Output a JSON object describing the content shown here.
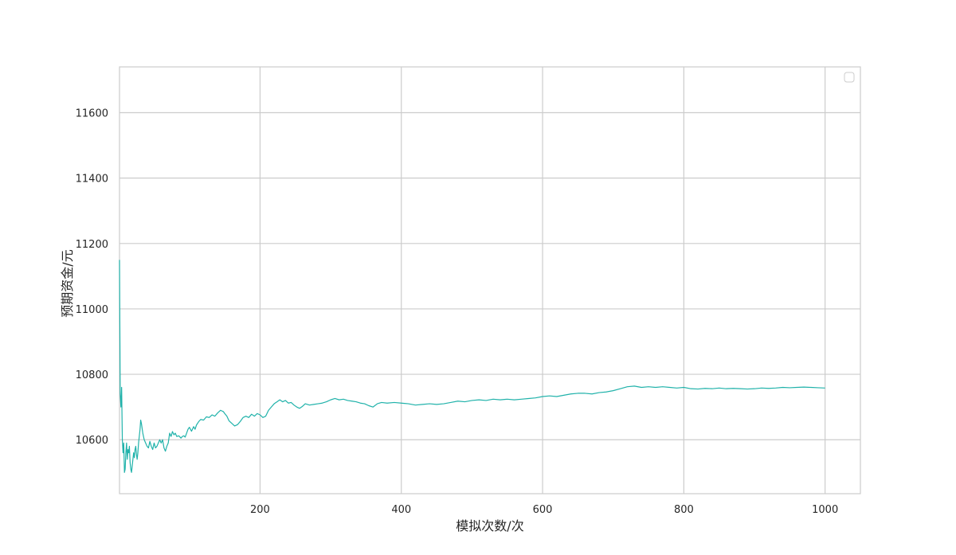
{
  "chart_data": {
    "type": "line",
    "title": "",
    "xlabel": "模拟次数/次",
    "ylabel": "预期资金/元",
    "xlim": [
      1,
      1050
    ],
    "ylim": [
      10435,
      11740
    ],
    "xticks": [
      200,
      400,
      600,
      800,
      1000
    ],
    "yticks": [
      10600,
      10800,
      11000,
      11200,
      11400,
      11600
    ],
    "grid": true,
    "legend": {
      "placement": "top-right",
      "entries": []
    },
    "line_color": "#20b2aa",
    "series": [
      {
        "points": [
          [
            1,
            11150
          ],
          [
            2,
            10740
          ],
          [
            3,
            10700
          ],
          [
            4,
            10760
          ],
          [
            5,
            10600
          ],
          [
            6,
            10560
          ],
          [
            7,
            10590
          ],
          [
            8,
            10500
          ],
          [
            9,
            10510
          ],
          [
            10,
            10560
          ],
          [
            11,
            10590
          ],
          [
            12,
            10540
          ],
          [
            13,
            10570
          ],
          [
            14,
            10560
          ],
          [
            15,
            10580
          ],
          [
            16,
            10530
          ],
          [
            17,
            10510
          ],
          [
            18,
            10500
          ],
          [
            19,
            10520
          ],
          [
            20,
            10540
          ],
          [
            21,
            10560
          ],
          [
            22,
            10545
          ],
          [
            23,
            10570
          ],
          [
            24,
            10580
          ],
          [
            25,
            10555
          ],
          [
            26,
            10540
          ],
          [
            27,
            10560
          ],
          [
            28,
            10590
          ],
          [
            29,
            10610
          ],
          [
            30,
            10630
          ],
          [
            31,
            10660
          ],
          [
            32,
            10650
          ],
          [
            33,
            10635
          ],
          [
            34,
            10620
          ],
          [
            35,
            10610
          ],
          [
            36,
            10600
          ],
          [
            38,
            10590
          ],
          [
            40,
            10580
          ],
          [
            42,
            10575
          ],
          [
            44,
            10595
          ],
          [
            46,
            10580
          ],
          [
            48,
            10570
          ],
          [
            50,
            10590
          ],
          [
            52,
            10575
          ],
          [
            54,
            10580
          ],
          [
            56,
            10590
          ],
          [
            58,
            10600
          ],
          [
            60,
            10590
          ],
          [
            62,
            10600
          ],
          [
            64,
            10575
          ],
          [
            66,
            10565
          ],
          [
            68,
            10580
          ],
          [
            70,
            10590
          ],
          [
            72,
            10620
          ],
          [
            74,
            10610
          ],
          [
            76,
            10625
          ],
          [
            78,
            10615
          ],
          [
            80,
            10620
          ],
          [
            82,
            10610
          ],
          [
            85,
            10612
          ],
          [
            88,
            10605
          ],
          [
            90,
            10610
          ],
          [
            92,
            10612
          ],
          [
            94,
            10608
          ],
          [
            96,
            10620
          ],
          [
            98,
            10632
          ],
          [
            100,
            10638
          ],
          [
            103,
            10626
          ],
          [
            106,
            10640
          ],
          [
            108,
            10632
          ],
          [
            110,
            10645
          ],
          [
            113,
            10655
          ],
          [
            116,
            10662
          ],
          [
            120,
            10660
          ],
          [
            124,
            10670
          ],
          [
            128,
            10668
          ],
          [
            132,
            10676
          ],
          [
            136,
            10672
          ],
          [
            140,
            10682
          ],
          [
            144,
            10690
          ],
          [
            148,
            10686
          ],
          [
            150,
            10680
          ],
          [
            153,
            10672
          ],
          [
            156,
            10658
          ],
          [
            160,
            10650
          ],
          [
            164,
            10642
          ],
          [
            168,
            10646
          ],
          [
            172,
            10656
          ],
          [
            176,
            10668
          ],
          [
            180,
            10672
          ],
          [
            184,
            10668
          ],
          [
            188,
            10678
          ],
          [
            192,
            10672
          ],
          [
            196,
            10680
          ],
          [
            200,
            10676
          ],
          [
            204,
            10668
          ],
          [
            208,
            10672
          ],
          [
            212,
            10690
          ],
          [
            216,
            10700
          ],
          [
            220,
            10710
          ],
          [
            224,
            10716
          ],
          [
            228,
            10722
          ],
          [
            232,
            10716
          ],
          [
            236,
            10720
          ],
          [
            240,
            10712
          ],
          [
            244,
            10714
          ],
          [
            248,
            10706
          ],
          [
            252,
            10700
          ],
          [
            256,
            10696
          ],
          [
            260,
            10702
          ],
          [
            264,
            10710
          ],
          [
            270,
            10706
          ],
          [
            276,
            10708
          ],
          [
            282,
            10710
          ],
          [
            288,
            10712
          ],
          [
            294,
            10716
          ],
          [
            300,
            10722
          ],
          [
            306,
            10726
          ],
          [
            312,
            10722
          ],
          [
            318,
            10724
          ],
          [
            324,
            10720
          ],
          [
            330,
            10718
          ],
          [
            336,
            10716
          ],
          [
            342,
            10712
          ],
          [
            348,
            10710
          ],
          [
            354,
            10704
          ],
          [
            360,
            10700
          ],
          [
            366,
            10710
          ],
          [
            372,
            10714
          ],
          [
            380,
            10712
          ],
          [
            390,
            10714
          ],
          [
            400,
            10712
          ],
          [
            410,
            10710
          ],
          [
            420,
            10706
          ],
          [
            430,
            10708
          ],
          [
            440,
            10710
          ],
          [
            450,
            10708
          ],
          [
            460,
            10710
          ],
          [
            470,
            10714
          ],
          [
            480,
            10718
          ],
          [
            490,
            10716
          ],
          [
            500,
            10720
          ],
          [
            510,
            10722
          ],
          [
            520,
            10720
          ],
          [
            530,
            10724
          ],
          [
            540,
            10722
          ],
          [
            550,
            10724
          ],
          [
            560,
            10722
          ],
          [
            570,
            10724
          ],
          [
            580,
            10726
          ],
          [
            590,
            10728
          ],
          [
            600,
            10732
          ],
          [
            610,
            10734
          ],
          [
            620,
            10732
          ],
          [
            630,
            10736
          ],
          [
            640,
            10740
          ],
          [
            650,
            10742
          ],
          [
            660,
            10742
          ],
          [
            670,
            10740
          ],
          [
            680,
            10744
          ],
          [
            690,
            10746
          ],
          [
            700,
            10750
          ],
          [
            710,
            10756
          ],
          [
            720,
            10762
          ],
          [
            730,
            10764
          ],
          [
            740,
            10760
          ],
          [
            750,
            10762
          ],
          [
            760,
            10760
          ],
          [
            770,
            10762
          ],
          [
            780,
            10760
          ],
          [
            790,
            10758
          ],
          [
            800,
            10760
          ],
          [
            810,
            10756
          ],
          [
            820,
            10755
          ],
          [
            830,
            10757
          ],
          [
            840,
            10756
          ],
          [
            850,
            10758
          ],
          [
            860,
            10756
          ],
          [
            870,
            10757
          ],
          [
            880,
            10756
          ],
          [
            890,
            10755
          ],
          [
            900,
            10756
          ],
          [
            910,
            10758
          ],
          [
            920,
            10757
          ],
          [
            930,
            10758
          ],
          [
            940,
            10760
          ],
          [
            950,
            10759
          ],
          [
            960,
            10760
          ],
          [
            970,
            10761
          ],
          [
            980,
            10760
          ],
          [
            990,
            10759
          ],
          [
            1000,
            10758
          ]
        ]
      }
    ]
  }
}
